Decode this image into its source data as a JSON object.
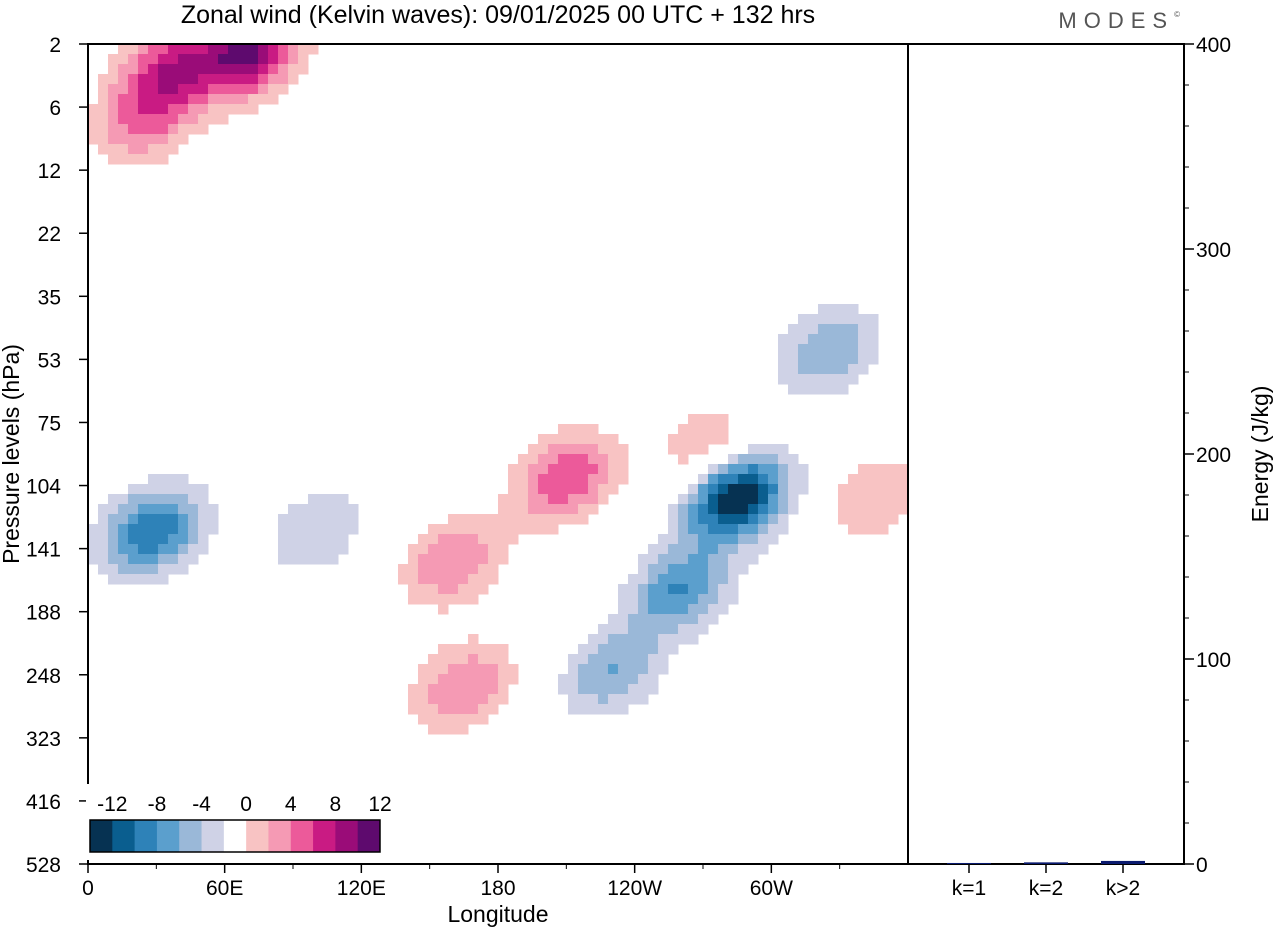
{
  "title": "Zonal wind (Kelvin waves):  09/01/2025  00 UTC  + 132 hrs",
  "brand": "MODES",
  "brand_mark": "©",
  "chart_data": [
    {
      "type": "heatmap",
      "xlabel": "Longitude",
      "ylabel": "Pressure levels (hPa)",
      "x_ticks": [
        "0",
        "60E",
        "120E",
        "180",
        "120W",
        "60W"
      ],
      "x_tick_degrees": [
        0,
        60,
        120,
        180,
        240,
        300
      ],
      "xlim": [
        0,
        360
      ],
      "y_ticks": [
        "2",
        "6",
        "12",
        "22",
        "35",
        "53",
        "75",
        "104",
        "141",
        "188",
        "248",
        "323",
        "416",
        "528"
      ],
      "colorbar": {
        "tick_labels": [
          "-12",
          "-8",
          "-4",
          "0",
          "4",
          "8",
          "12"
        ],
        "levels": [
          -14,
          -12,
          -10,
          -8,
          -6,
          -4,
          -2,
          2,
          4,
          6,
          8,
          10,
          12,
          14
        ],
        "colors": [
          "#063252",
          "#0a5e8f",
          "#2e82b8",
          "#5b9fcd",
          "#9ab8d8",
          "#cfd2e6",
          "#ffffff",
          "#f8c3c3",
          "#f59ab4",
          "#ec5a9a",
          "#c91b83",
          "#9a0c78",
          "#5e0a6e"
        ]
      },
      "blobs": [
        {
          "lon": 28,
          "p": 130,
          "value": -10
        },
        {
          "lon": 285,
          "p": 110,
          "value": -14
        },
        {
          "lon": 260,
          "p": 170,
          "value": -8
        },
        {
          "lon": 230,
          "p": 245,
          "value": -6
        },
        {
          "lon": 325,
          "p": 50,
          "value": -6
        },
        {
          "lon": 100,
          "p": 130,
          "value": -4
        },
        {
          "lon": 175,
          "p": 470,
          "value": -2
        },
        {
          "lon": 210,
          "p": 100,
          "value": 8
        },
        {
          "lon": 160,
          "p": 150,
          "value": 6
        },
        {
          "lon": 165,
          "p": 260,
          "value": 6
        },
        {
          "lon": 272,
          "p": 85,
          "value": 4
        },
        {
          "lon": 345,
          "p": 110,
          "value": 4
        },
        {
          "lon": 30,
          "p": 270,
          "value": 2
        },
        {
          "lon": 225,
          "p": 510,
          "value": 2
        },
        {
          "lon": 35,
          "p": 3,
          "value": 8
        },
        {
          "lon": 70,
          "p": 2.4,
          "value": 12
        },
        {
          "lon": 25,
          "p": 7,
          "value": 6
        }
      ]
    },
    {
      "type": "bar",
      "ylabel": "Energy (J/kg)",
      "categories": [
        "k=1",
        "k=2",
        "k>2"
      ],
      "values": [
        0.5,
        0.8,
        1.5
      ],
      "ylim": [
        0,
        400
      ],
      "y_ticks": [
        0,
        100,
        200,
        300,
        400
      ],
      "bar_color": "#0a1a6e"
    }
  ]
}
